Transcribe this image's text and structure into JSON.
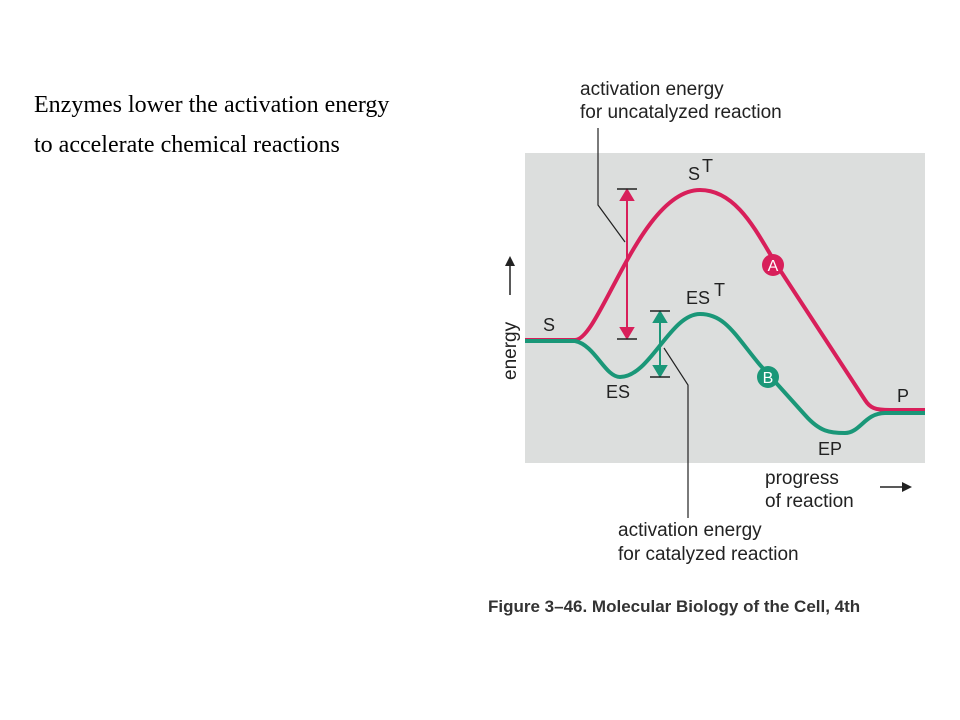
{
  "slide": {
    "title_lines": [
      "Enzymes lower the activation energy",
      "to accelerate chemical reactions"
    ]
  },
  "diagram": {
    "uncatalyzed_label": [
      "activation energy",
      "for uncatalyzed reaction"
    ],
    "catalyzed_label": [
      "activation energy",
      "for catalyzed reaction"
    ],
    "y_axis_label": "energy",
    "x_axis_label": [
      "progress",
      "of reaction"
    ],
    "nodes": [
      {
        "label": "S"
      },
      {
        "label": "S",
        "sup": "T"
      },
      {
        "label": "ES"
      },
      {
        "label": "ES",
        "sup": "T"
      },
      {
        "label": "EP"
      },
      {
        "label": "P"
      }
    ],
    "curve_labels": [
      "A",
      "B"
    ],
    "caption": "Figure 3–46. Molecular Biology of the Cell, 4th"
  }
}
